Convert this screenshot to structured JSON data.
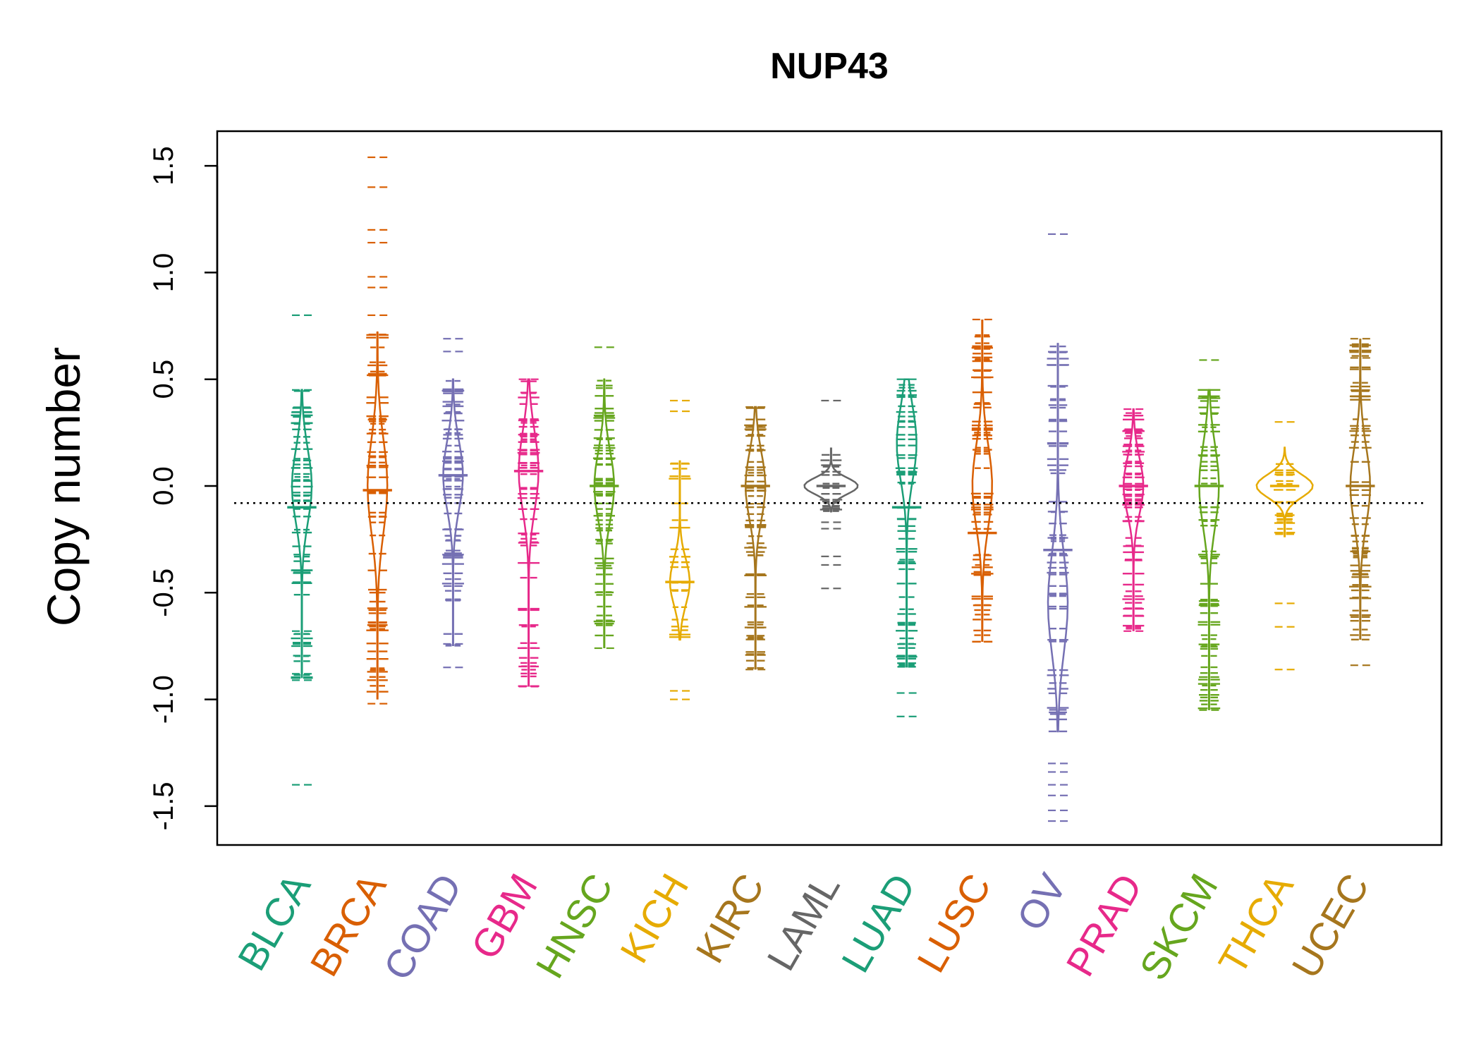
{
  "chart_data": {
    "type": "beanplot",
    "title": "NUP43",
    "xlabel": "",
    "ylabel": "Copy number",
    "ylim": [
      -1.7,
      1.65
    ],
    "yticks": [
      -1.5,
      -1.0,
      -0.5,
      0.0,
      0.5,
      1.0,
      1.5
    ],
    "ytick_labels": [
      "-1.5",
      "-1.0",
      "-0.5",
      "0.0",
      "0.5",
      "1.0",
      "1.5"
    ],
    "reference_line": -0.08,
    "grid": false,
    "legend": "none",
    "categories": [
      "BLCA",
      "BRCA",
      "COAD",
      "GBM",
      "HNSC",
      "KICH",
      "KIRC",
      "LAML",
      "LUAD",
      "LUSC",
      "OV",
      "PRAD",
      "SKCM",
      "THCA",
      "UCEC"
    ],
    "colors": [
      "#1B9E77",
      "#D95F02",
      "#7570B3",
      "#E7298A",
      "#66A61E",
      "#E6AB02",
      "#A6761D",
      "#666666",
      "#1B9E77",
      "#D95F02",
      "#7570B3",
      "#E7298A",
      "#66A61E",
      "#E6AB02",
      "#A6761D"
    ],
    "series": [
      {
        "category": "BLCA",
        "min": -1.4,
        "max": 0.8,
        "bean_low": -0.9,
        "bean_high": 0.45,
        "mode": 0.0,
        "median": -0.1,
        "extremes": [
          -1.4,
          -0.91,
          -0.88,
          -0.68,
          0.45,
          0.8
        ]
      },
      {
        "category": "BRCA",
        "min": -1.02,
        "max": 1.54,
        "bean_low": -1.0,
        "bean_high": 0.72,
        "mode": 0.0,
        "median": -0.02,
        "extremes": [
          -1.02,
          0.8,
          0.93,
          0.98,
          1.14,
          1.2,
          1.4,
          1.54
        ]
      },
      {
        "category": "COAD",
        "min": -0.85,
        "max": 0.69,
        "bean_low": -0.75,
        "bean_high": 0.5,
        "mode": 0.05,
        "median": 0.05,
        "extremes": [
          -0.85,
          -0.74,
          0.63,
          0.69
        ]
      },
      {
        "category": "GBM",
        "min": -0.94,
        "max": 0.5,
        "bean_low": -0.94,
        "bean_high": 0.5,
        "mode": 0.07,
        "median": 0.07,
        "extremes": [
          -0.94,
          0.5
        ]
      },
      {
        "category": "HNSC",
        "min": -0.76,
        "max": 0.65,
        "bean_low": -0.76,
        "bean_high": 0.5,
        "mode": 0.0,
        "median": 0.0,
        "extremes": [
          -0.76,
          0.65
        ]
      },
      {
        "category": "KICH",
        "min": -1.0,
        "max": 0.4,
        "bean_low": -0.72,
        "bean_high": 0.12,
        "mode": -0.45,
        "median": -0.45,
        "extremes": [
          -1.0,
          -0.96,
          0.35,
          0.4
        ]
      },
      {
        "category": "KIRC",
        "min": -0.86,
        "max": 0.37,
        "bean_low": -0.86,
        "bean_high": 0.37,
        "mode": 0.0,
        "median": 0.0,
        "extremes": [
          -0.86,
          0.37
        ]
      },
      {
        "category": "LAML",
        "min": -0.48,
        "max": 0.4,
        "bean_low": -0.12,
        "bean_high": 0.18,
        "mode": 0.0,
        "median": 0.0,
        "extremes": [
          -0.48,
          -0.37,
          -0.33,
          -0.2,
          -0.17,
          0.4
        ]
      },
      {
        "category": "LUAD",
        "min": -1.08,
        "max": 0.5,
        "bean_low": -0.85,
        "bean_high": 0.5,
        "mode": 0.2,
        "median": -0.1,
        "extremes": [
          -1.08,
          -0.97,
          0.5
        ]
      },
      {
        "category": "LUSC",
        "min": -0.73,
        "max": 0.78,
        "bean_low": -0.73,
        "bean_high": 0.78,
        "mode": 0.0,
        "median": -0.22,
        "extremes": [
          -0.73,
          0.78
        ]
      },
      {
        "category": "OV",
        "min": -1.57,
        "max": 1.18,
        "bean_low": -1.15,
        "bean_high": 0.67,
        "mode": -0.55,
        "median": -0.3,
        "extremes": [
          -1.57,
          -1.52,
          -1.45,
          -1.4,
          -1.34,
          -1.3,
          1.18
        ]
      },
      {
        "category": "PRAD",
        "min": -0.68,
        "max": 0.36,
        "bean_low": -0.68,
        "bean_high": 0.36,
        "mode": 0.0,
        "median": 0.0,
        "extremes": [
          -0.68,
          0.33,
          0.36
        ]
      },
      {
        "category": "SKCM",
        "min": -1.05,
        "max": 0.59,
        "bean_low": -1.05,
        "bean_high": 0.45,
        "mode": 0.0,
        "median": 0.0,
        "extremes": [
          -1.05,
          0.59
        ]
      },
      {
        "category": "THCA",
        "min": -0.86,
        "max": 0.3,
        "bean_low": -0.24,
        "bean_high": 0.18,
        "mode": 0.0,
        "median": 0.0,
        "extremes": [
          -0.86,
          -0.66,
          -0.55,
          0.3
        ]
      },
      {
        "category": "UCEC",
        "min": -0.84,
        "max": 0.69,
        "bean_low": -0.72,
        "bean_high": 0.69,
        "mode": 0.0,
        "median": 0.0,
        "extremes": [
          -0.84,
          0.6,
          0.69
        ]
      }
    ]
  }
}
